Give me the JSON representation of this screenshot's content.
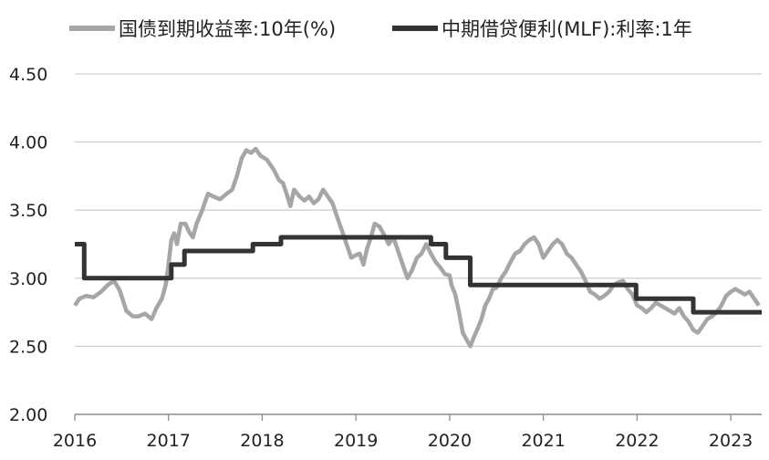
{
  "chart_data": {
    "type": "line",
    "title": "",
    "xlabel": "",
    "ylabel": "",
    "xlim": [
      2016.0,
      2023.33
    ],
    "ylim": [
      2.0,
      4.5
    ],
    "y_ticks": [
      "2.00",
      "2.50",
      "3.00",
      "3.50",
      "4.00",
      "4.50"
    ],
    "x_ticks": [
      "2016",
      "2017",
      "2018",
      "2019",
      "2020",
      "2021",
      "2022",
      "2023"
    ],
    "grid": "horizontal",
    "legend_position": "top",
    "series": [
      {
        "name": "国债到期收益率:10年(%)",
        "color": "#a6a6a6",
        "style": "noisy-line",
        "x": [
          2016.0,
          2016.05,
          2016.12,
          2016.2,
          2016.28,
          2016.35,
          2016.42,
          2016.48,
          2016.55,
          2016.62,
          2016.68,
          2016.75,
          2016.82,
          2016.87,
          2016.93,
          2016.97,
          2017.0,
          2017.03,
          2017.06,
          2017.09,
          2017.13,
          2017.18,
          2017.22,
          2017.26,
          2017.3,
          2017.36,
          2017.42,
          2017.48,
          2017.55,
          2017.62,
          2017.68,
          2017.73,
          2017.78,
          2017.83,
          2017.88,
          2017.93,
          2017.98,
          2018.05,
          2018.12,
          2018.18,
          2018.22,
          2018.26,
          2018.3,
          2018.34,
          2018.4,
          2018.45,
          2018.5,
          2018.55,
          2018.6,
          2018.65,
          2018.7,
          2018.75,
          2018.8,
          2018.85,
          2018.9,
          2018.95,
          2019.0,
          2019.04,
          2019.08,
          2019.12,
          2019.16,
          2019.2,
          2019.25,
          2019.3,
          2019.35,
          2019.4,
          2019.45,
          2019.5,
          2019.55,
          2019.6,
          2019.65,
          2019.7,
          2019.75,
          2019.8,
          2019.85,
          2019.9,
          2019.95,
          2020.0,
          2020.02,
          2020.06,
          2020.1,
          2020.14,
          2020.18,
          2020.22,
          2020.26,
          2020.3,
          2020.34,
          2020.38,
          2020.42,
          2020.46,
          2020.5,
          2020.55,
          2020.6,
          2020.65,
          2020.7,
          2020.75,
          2020.8,
          2020.85,
          2020.9,
          2020.95,
          2021.0,
          2021.05,
          2021.1,
          2021.15,
          2021.2,
          2021.25,
          2021.3,
          2021.35,
          2021.4,
          2021.45,
          2021.5,
          2021.55,
          2021.6,
          2021.65,
          2021.7,
          2021.75,
          2021.8,
          2021.85,
          2021.9,
          2021.95,
          2022.0,
          2022.05,
          2022.1,
          2022.15,
          2022.2,
          2022.25,
          2022.3,
          2022.35,
          2022.4,
          2022.45,
          2022.5,
          2022.55,
          2022.6,
          2022.65,
          2022.7,
          2022.75,
          2022.8,
          2022.85,
          2022.9,
          2022.95,
          2023.0,
          2023.05,
          2023.1,
          2023.15,
          2023.2,
          2023.25,
          2023.3
        ],
        "values": [
          2.8,
          2.85,
          2.87,
          2.86,
          2.9,
          2.95,
          2.98,
          2.91,
          2.76,
          2.72,
          2.72,
          2.74,
          2.7,
          2.78,
          2.85,
          2.95,
          3.1,
          3.28,
          3.33,
          3.25,
          3.4,
          3.4,
          3.34,
          3.3,
          3.4,
          3.5,
          3.62,
          3.6,
          3.58,
          3.62,
          3.65,
          3.75,
          3.88,
          3.94,
          3.92,
          3.95,
          3.9,
          3.87,
          3.8,
          3.72,
          3.7,
          3.62,
          3.53,
          3.65,
          3.6,
          3.57,
          3.6,
          3.55,
          3.58,
          3.65,
          3.6,
          3.55,
          3.45,
          3.35,
          3.25,
          3.15,
          3.17,
          3.18,
          3.1,
          3.22,
          3.3,
          3.4,
          3.38,
          3.32,
          3.25,
          3.3,
          3.2,
          3.1,
          3.0,
          3.06,
          3.15,
          3.18,
          3.25,
          3.18,
          3.12,
          3.08,
          3.03,
          3.02,
          2.95,
          2.88,
          2.75,
          2.6,
          2.55,
          2.5,
          2.57,
          2.63,
          2.7,
          2.8,
          2.85,
          2.92,
          2.93,
          3.0,
          3.05,
          3.12,
          3.18,
          3.2,
          3.25,
          3.28,
          3.3,
          3.25,
          3.15,
          3.2,
          3.25,
          3.28,
          3.25,
          3.18,
          3.15,
          3.1,
          3.05,
          2.98,
          2.9,
          2.88,
          2.85,
          2.87,
          2.9,
          2.95,
          2.97,
          2.98,
          2.92,
          2.88,
          2.8,
          2.78,
          2.75,
          2.78,
          2.82,
          2.8,
          2.78,
          2.76,
          2.74,
          2.78,
          2.72,
          2.68,
          2.62,
          2.6,
          2.65,
          2.7,
          2.72,
          2.75,
          2.8,
          2.87,
          2.9,
          2.92,
          2.9,
          2.88,
          2.9,
          2.85,
          2.8
        ]
      },
      {
        "name": "中期借贷便利(MLF):利率:1年",
        "color": "#333333",
        "style": "step",
        "x": [
          2016.0,
          2016.1,
          2016.1,
          2017.03,
          2017.03,
          2017.17,
          2017.17,
          2017.9,
          2017.9,
          2018.2,
          2018.2,
          2019.8,
          2019.8,
          2019.96,
          2019.96,
          2020.22,
          2020.22,
          2021.99,
          2021.99,
          2022.6,
          2022.6,
          2023.33
        ],
        "values": [
          3.25,
          3.25,
          3.0,
          3.0,
          3.1,
          3.1,
          3.2,
          3.2,
          3.25,
          3.25,
          3.3,
          3.3,
          3.25,
          3.25,
          3.15,
          3.15,
          2.95,
          2.95,
          2.85,
          2.85,
          2.75,
          2.75
        ]
      }
    ]
  }
}
